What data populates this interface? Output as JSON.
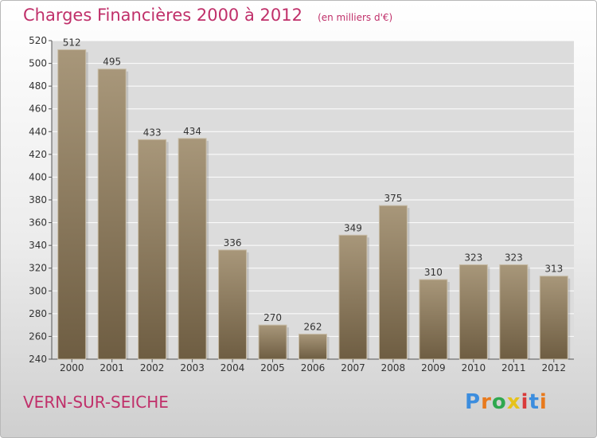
{
  "title": "Charges Financières 2000 à 2012",
  "subtitle": "(en milliers d'€)",
  "place": "VERN-SUR-SEICHE",
  "logo": {
    "text": "Proxiti",
    "colors": [
      "#3c8dde",
      "#e87a1d",
      "#2fa84f",
      "#e6c21b",
      "#d93a3a",
      "#3c8dde",
      "#e87a1d"
    ]
  },
  "colors": {
    "bar": "#8c7a5c",
    "bar_light": "#a8977a",
    "bar_dark": "#6e5d42",
    "title": "#c0306a",
    "grid": "#ffffff"
  },
  "chart_data": {
    "type": "bar",
    "categories": [
      "2000",
      "2001",
      "2002",
      "2003",
      "2004",
      "2005",
      "2006",
      "2007",
      "2008",
      "2009",
      "2010",
      "2011",
      "2012"
    ],
    "values": [
      512,
      495,
      433,
      434,
      336,
      270,
      262,
      349,
      375,
      310,
      323,
      323,
      313
    ],
    "ylim": [
      240,
      520
    ],
    "yticks": [
      240,
      260,
      280,
      300,
      320,
      340,
      360,
      380,
      400,
      420,
      440,
      460,
      480,
      500,
      520
    ],
    "grid": true,
    "data_labels": true
  }
}
